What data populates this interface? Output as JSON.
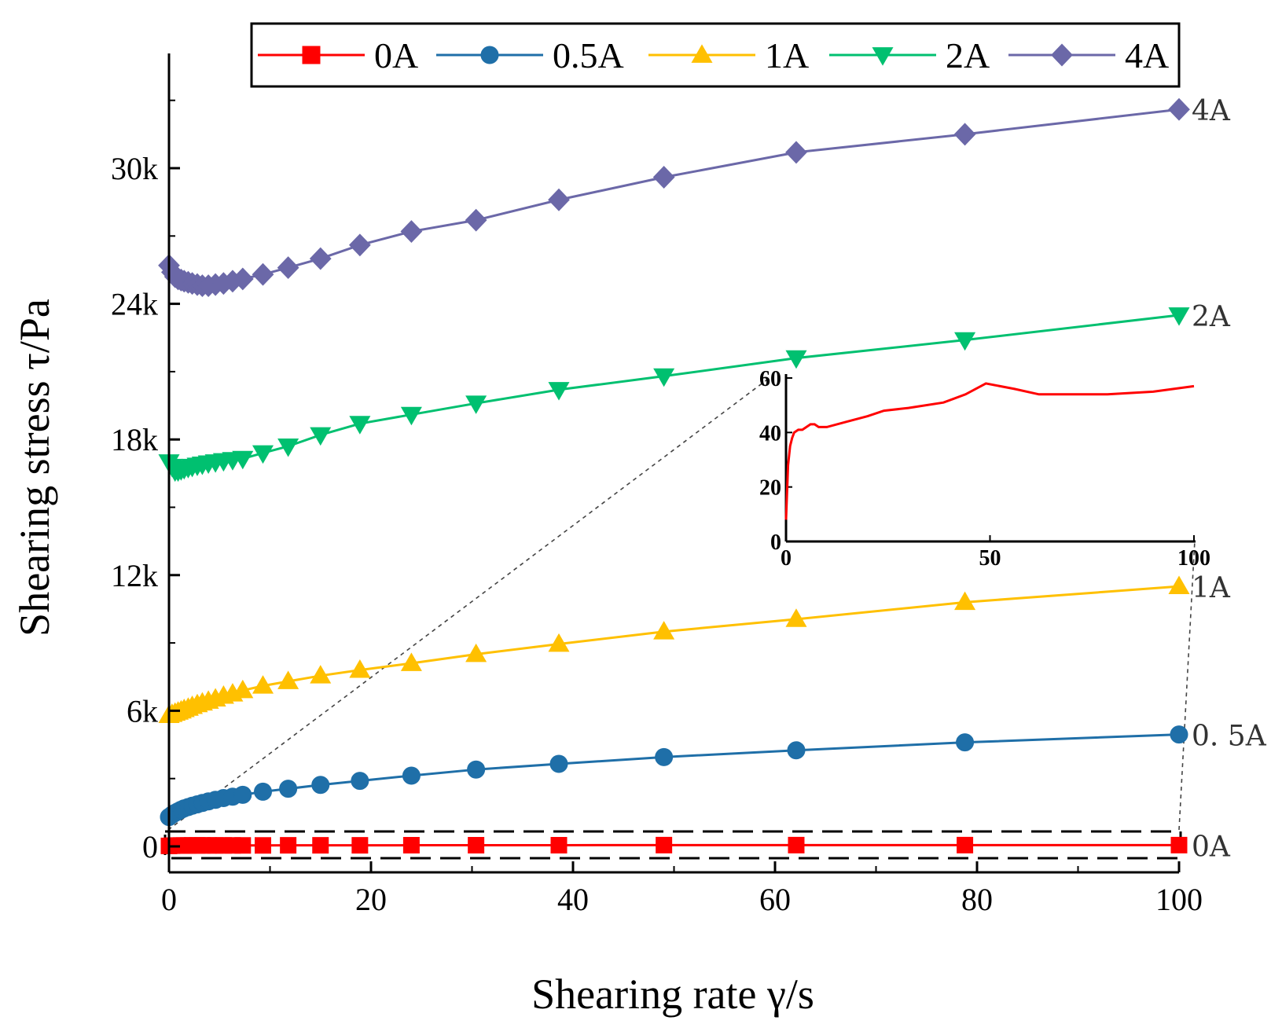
{
  "chart_data": {
    "type": "line",
    "xlabel": "Shearing rate γ/s",
    "ylabel": "Shearing stress τ/Pa",
    "xlim": [
      0,
      100
    ],
    "ylim": [
      -1200,
      34500
    ],
    "x_ticks": [
      0,
      20,
      40,
      60,
      80,
      100
    ],
    "x_tick_labels": [
      "0",
      "20",
      "40",
      "60",
      "80",
      "100"
    ],
    "y_ticks": [
      0,
      6000,
      12000,
      18000,
      24000,
      30000
    ],
    "y_tick_labels": [
      "0",
      "6k",
      "12k",
      "18k",
      "24k",
      "30k"
    ],
    "legend_position": "top",
    "series": [
      {
        "name": "0A",
        "end_label": "0A",
        "color": "#ff0000",
        "marker": "square",
        "x": [
          0,
          0.3,
          0.6,
          0.9,
          1.2,
          1.5,
          1.9,
          2.3,
          2.8,
          3.3,
          3.9,
          4.6,
          5.4,
          6.3,
          7.3,
          9.3,
          11.8,
          15.0,
          18.9,
          24.0,
          30.4,
          38.6,
          49.0,
          62.1,
          78.8,
          100
        ],
        "y": [
          20,
          30,
          35,
          38,
          40,
          41,
          41,
          42,
          43,
          44,
          43,
          42,
          42,
          43,
          44,
          45,
          47,
          48,
          49,
          50,
          52,
          53,
          58,
          55,
          55,
          57
        ]
      },
      {
        "name": "0.5A",
        "end_label": "0. 5A",
        "color": "#1f6fa8",
        "marker": "circle",
        "x": [
          0,
          0.3,
          0.6,
          0.9,
          1.2,
          1.5,
          1.9,
          2.3,
          2.8,
          3.3,
          3.9,
          4.6,
          5.4,
          6.3,
          7.3,
          9.3,
          11.8,
          15.0,
          18.9,
          24.0,
          30.4,
          38.6,
          49.0,
          62.1,
          78.8,
          100
        ],
        "y": [
          1300,
          1400,
          1480,
          1550,
          1620,
          1680,
          1740,
          1800,
          1860,
          1920,
          1990,
          2060,
          2140,
          2200,
          2280,
          2420,
          2550,
          2720,
          2900,
          3130,
          3400,
          3650,
          3950,
          4250,
          4600,
          4950
        ]
      },
      {
        "name": "1A",
        "end_label": "1A",
        "color": "#ffc000",
        "marker": "triangle-up",
        "x": [
          0,
          0.3,
          0.6,
          0.9,
          1.2,
          1.5,
          1.9,
          2.3,
          2.8,
          3.3,
          3.9,
          4.6,
          5.4,
          6.3,
          7.3,
          9.3,
          11.8,
          15.0,
          18.9,
          24.0,
          30.4,
          38.6,
          49.0,
          62.1,
          78.8,
          100
        ],
        "y": [
          5800,
          5850,
          5900,
          5950,
          6000,
          6060,
          6120,
          6200,
          6280,
          6350,
          6430,
          6530,
          6650,
          6750,
          6900,
          7100,
          7300,
          7550,
          7800,
          8100,
          8500,
          8950,
          9500,
          10050,
          10800,
          11500
        ]
      },
      {
        "name": "2A",
        "end_label": "2A",
        "color": "#00c070",
        "marker": "triangle-down",
        "x": [
          0,
          0.3,
          0.6,
          0.9,
          1.2,
          1.5,
          1.9,
          2.3,
          2.8,
          3.3,
          3.9,
          4.6,
          5.4,
          6.3,
          7.3,
          9.3,
          11.8,
          15.0,
          18.9,
          24.0,
          30.4,
          38.6,
          49.0,
          62.1,
          78.8,
          100
        ],
        "y": [
          17000,
          16800,
          16600,
          16600,
          16650,
          16700,
          16750,
          16800,
          16850,
          16900,
          16950,
          17000,
          17050,
          17100,
          17150,
          17400,
          17700,
          18200,
          18700,
          19100,
          19600,
          20200,
          20800,
          21600,
          22400,
          23500
        ]
      },
      {
        "name": "4A",
        "end_label": "4A",
        "color": "#6b68a8",
        "marker": "diamond",
        "x": [
          0,
          0.3,
          0.6,
          0.9,
          1.2,
          1.5,
          1.9,
          2.3,
          2.8,
          3.3,
          3.9,
          4.6,
          5.4,
          6.3,
          7.3,
          9.3,
          11.8,
          15.0,
          18.9,
          24.0,
          30.4,
          38.6,
          49.0,
          62.1,
          78.8,
          100
        ],
        "y": [
          25700,
          25400,
          25200,
          25100,
          25050,
          25000,
          24950,
          24900,
          24850,
          24800,
          24800,
          24850,
          24900,
          25000,
          25100,
          25300,
          25600,
          26000,
          26600,
          27200,
          27700,
          28600,
          29600,
          30700,
          31500,
          32600
        ]
      }
    ],
    "inset": {
      "type": "line",
      "series_name": "0A",
      "color": "#ff0000",
      "xlim": [
        0,
        100
      ],
      "ylim": [
        0,
        60
      ],
      "x_ticks": [
        0,
        50,
        100
      ],
      "x_tick_labels": [
        "0",
        "50",
        "100"
      ],
      "y_ticks": [
        0,
        20,
        40,
        60
      ],
      "y_tick_labels": [
        "0",
        "20",
        "40",
        "60"
      ],
      "x": [
        0,
        0.5,
        1.0,
        1.5,
        2.0,
        3.0,
        4.0,
        5.0,
        6.0,
        7.0,
        8.0,
        10.0,
        15.0,
        20.0,
        24.0,
        30.0,
        38.6,
        44.0,
        49.0,
        56.0,
        62.0,
        70.0,
        78.8,
        90.0,
        100.0
      ],
      "y": [
        8,
        28,
        35,
        38,
        40,
        41,
        41,
        42,
        43,
        43,
        42,
        42,
        44,
        46,
        48,
        49,
        51,
        54,
        58,
        56,
        54,
        54,
        54,
        55,
        57
      ]
    }
  }
}
